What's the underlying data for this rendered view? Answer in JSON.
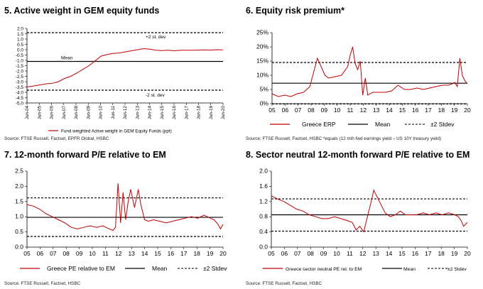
{
  "panels": [
    {
      "title": "5. Active weight in GEM equity funds",
      "source": "Source: FTSE Russell, Factset, EPFR Global, HSBC"
    },
    {
      "title": "6. Equity risk premium*",
      "source": "Source: FTSE Russell, Factset, HSBC *equals (12 mth fwd earnings yield – US 10Y treasury yield)"
    },
    {
      "title": "7. 12-month forward P/E relative to EM",
      "source": "Source: FTSE Russell, Factset, HSBC"
    },
    {
      "title": "8. Sector neutral 12-month forward P/E relative to EM",
      "source": "Source: FTSE Russell, Factset, HSBC"
    }
  ],
  "chart_data": [
    {
      "type": "line",
      "title": "5. Active weight in GEM equity funds",
      "ylim": [
        -5.0,
        2.0
      ],
      "yticks": [
        "2.0",
        "1.5",
        "1.0",
        "0.5",
        "0.0",
        "-0.5",
        "-1.0",
        "-1.5",
        "-2.0",
        "-2.5",
        "-3.0",
        "-3.5",
        "-4.0",
        "-4.5",
        "-5.0"
      ],
      "ytick_values": [
        2.0,
        1.5,
        1.0,
        0.5,
        0.0,
        -0.5,
        -1.0,
        -1.5,
        -2.0,
        -2.5,
        -3.0,
        -3.5,
        -4.0,
        -4.5,
        -5.0
      ],
      "xticks": [
        "Jun-04",
        "Jun-05",
        "Jun-06",
        "Jun-07",
        "Jun-08",
        "Jun-09",
        "Jun-10",
        "Jun-11",
        "Jun-12",
        "Jun-13",
        "Jun-14",
        "Jun-15",
        "Jun-16",
        "Jun-17",
        "Jun-18",
        "Jun-19",
        "Jun-20"
      ],
      "xlim": [
        2004.42,
        2020.5
      ],
      "x": [
        2004.42,
        2005.0,
        2005.5,
        2006.0,
        2006.5,
        2007.0,
        2007.5,
        2008.0,
        2008.5,
        2009.0,
        2009.5,
        2010.0,
        2010.5,
        2011.0,
        2011.5,
        2012.0,
        2012.5,
        2013.0,
        2013.5,
        2014.0,
        2014.5,
        2015.0,
        2015.5,
        2016.0,
        2016.5,
        2017.0,
        2017.5,
        2018.0,
        2018.5,
        2019.0,
        2019.5,
        2020.0,
        2020.5
      ],
      "series": [
        {
          "name": "Fund weighted Active weight in GEM Equity Funds (ppt)",
          "color": "#c00000",
          "values": [
            -3.5,
            -3.4,
            -3.3,
            -3.2,
            -3.15,
            -3.0,
            -2.7,
            -2.5,
            -2.2,
            -1.85,
            -1.5,
            -1.05,
            -0.6,
            -0.45,
            -0.35,
            -0.3,
            -0.2,
            -0.1,
            0.0,
            0.1,
            0.05,
            -0.05,
            -0.08,
            -0.05,
            -0.1,
            -0.05,
            -0.05,
            -0.05,
            -0.03,
            -0.02,
            -0.03,
            0.0,
            -0.02
          ]
        }
      ],
      "reference_lines": [
        {
          "label": "+2 st. dev",
          "value": 1.6,
          "style": "dashed"
        },
        {
          "label": "Mean",
          "value": -1.1,
          "style": "solid"
        },
        {
          "label": "-2 st. dev",
          "value": -3.8,
          "style": "dashed"
        }
      ]
    },
    {
      "type": "line",
      "title": "6. Equity risk premium*",
      "ylim": [
        0,
        25
      ],
      "yticks": [
        "25%",
        "20%",
        "15%",
        "10%",
        "5%",
        "0%"
      ],
      "ytick_values": [
        25,
        20,
        15,
        10,
        5,
        0
      ],
      "xticks": [
        "05",
        "06",
        "07",
        "08",
        "09",
        "10",
        "11",
        "12",
        "13",
        "14",
        "15",
        "16",
        "17",
        "18",
        "19",
        "20"
      ],
      "xlim": [
        2005,
        2020.5
      ],
      "x": [
        2005.0,
        2005.5,
        2006.0,
        2006.5,
        2007.0,
        2007.5,
        2008.0,
        2008.3,
        2008.6,
        2008.9,
        2009.2,
        2009.5,
        2010.0,
        2010.5,
        2011.0,
        2011.2,
        2011.4,
        2011.6,
        2011.8,
        2012.0,
        2012.2,
        2012.4,
        2012.6,
        2013.0,
        2013.5,
        2014.0,
        2014.5,
        2015.0,
        2015.5,
        2016.0,
        2016.5,
        2017.0,
        2017.5,
        2018.0,
        2018.5,
        2019.0,
        2019.3,
        2019.5,
        2019.7,
        2019.9,
        2020.1,
        2020.3,
        2020.5
      ],
      "series": [
        {
          "name": "Greece ERP",
          "color": "#c00000",
          "values": [
            3.5,
            2.5,
            3.0,
            2.5,
            3.5,
            4.0,
            6.0,
            11.0,
            16.0,
            13.0,
            10.0,
            9.0,
            9.5,
            10.0,
            13.0,
            17.0,
            20.0,
            14.0,
            12.0,
            15.0,
            3.0,
            9.0,
            3.0,
            4.0,
            4.0,
            4.0,
            4.5,
            6.5,
            5.0,
            5.0,
            5.5,
            5.0,
            5.5,
            6.0,
            6.5,
            6.5,
            7.0,
            7.5,
            6.0,
            16.0,
            10.0,
            8.0,
            7.0
          ]
        },
        {
          "name": "Mean",
          "color": "#000000"
        },
        {
          "name": "±2 Stdev",
          "color": "#000000"
        }
      ],
      "reference_lines": [
        {
          "label": "Mean",
          "value": 7.2,
          "style": "solid"
        },
        {
          "label": "±2 Stdev",
          "value": 14.5,
          "style": "dashed"
        },
        {
          "label": "±2 Stdev",
          "value": -0.1,
          "style": "dashed"
        }
      ]
    },
    {
      "type": "line",
      "title": "7. 12-month forward P/E relative to EM",
      "ylim": [
        0.0,
        2.5
      ],
      "yticks": [
        "2.5",
        "2.0",
        "1.5",
        "1.0",
        "0.5",
        "0.0"
      ],
      "ytick_values": [
        2.5,
        2.0,
        1.5,
        1.0,
        0.5,
        0.0
      ],
      "xticks": [
        "05",
        "06",
        "07",
        "08",
        "09",
        "10",
        "11",
        "12",
        "13",
        "14",
        "15",
        "16",
        "17",
        "18",
        "19",
        "20"
      ],
      "xlim": [
        2005,
        2020.5
      ],
      "x": [
        2005.0,
        2005.5,
        2006.0,
        2006.5,
        2007.0,
        2007.5,
        2008.0,
        2008.5,
        2009.0,
        2009.5,
        2010.0,
        2010.5,
        2011.0,
        2011.5,
        2011.8,
        2012.0,
        2012.2,
        2012.4,
        2012.6,
        2012.8,
        2013.0,
        2013.2,
        2013.5,
        2013.8,
        2014.0,
        2014.3,
        2014.6,
        2015.0,
        2015.5,
        2016.0,
        2016.5,
        2017.0,
        2017.5,
        2018.0,
        2018.5,
        2019.0,
        2019.5,
        2019.8,
        2020.1,
        2020.3,
        2020.5
      ],
      "series": [
        {
          "name": "Greece PE relative to EM",
          "color": "#c00000",
          "values": [
            1.4,
            1.35,
            1.25,
            1.1,
            1.0,
            0.9,
            0.8,
            0.65,
            0.6,
            0.65,
            0.7,
            0.65,
            0.7,
            0.6,
            0.55,
            0.65,
            2.1,
            0.8,
            1.8,
            0.9,
            1.5,
            1.9,
            1.3,
            1.9,
            1.4,
            0.9,
            0.85,
            0.9,
            0.85,
            0.8,
            0.85,
            0.9,
            0.95,
            1.0,
            0.95,
            1.05,
            0.95,
            0.9,
            0.75,
            0.6,
            0.75
          ]
        },
        {
          "name": "Mean",
          "color": "#000000"
        },
        {
          "name": "±2 Stdev",
          "color": "#000000"
        }
      ],
      "reference_lines": [
        {
          "label": "±2 Stdev",
          "value": 1.62,
          "style": "dashed"
        },
        {
          "label": "Mean",
          "value": 0.98,
          "style": "solid"
        },
        {
          "label": "±2 Stdev",
          "value": 0.35,
          "style": "dashed"
        }
      ]
    },
    {
      "type": "line",
      "title": "8. Sector neutral 12-month forward P/E relative to EM",
      "ylim": [
        0.0,
        2.0
      ],
      "yticks": [
        "2.0",
        "1.6",
        "1.2",
        "0.8",
        "0.4",
        "0.0"
      ],
      "ytick_values": [
        2.0,
        1.6,
        1.2,
        0.8,
        0.4,
        0.0
      ],
      "xticks": [
        "05",
        "06",
        "07",
        "08",
        "09",
        "10",
        "11",
        "12",
        "13",
        "14",
        "15",
        "16",
        "17",
        "18",
        "19",
        "20"
      ],
      "xlim": [
        2005,
        2020.5
      ],
      "x": [
        2005.0,
        2005.3,
        2005.6,
        2006.0,
        2006.5,
        2007.0,
        2007.5,
        2008.0,
        2008.5,
        2009.0,
        2009.5,
        2010.0,
        2010.5,
        2011.0,
        2011.4,
        2011.7,
        2012.0,
        2012.3,
        2012.6,
        2012.9,
        2013.1,
        2013.4,
        2013.7,
        2014.0,
        2014.4,
        2014.8,
        2015.2,
        2015.6,
        2016.0,
        2016.5,
        2017.0,
        2017.5,
        2018.0,
        2018.5,
        2019.0,
        2019.5,
        2019.8,
        2020.0,
        2020.2,
        2020.5
      ],
      "series": [
        {
          "name": "Greece sector neutral PE rel. to EM",
          "color": "#c00000",
          "values": [
            1.35,
            1.3,
            1.25,
            1.2,
            1.1,
            1.0,
            0.95,
            0.85,
            0.8,
            0.75,
            0.75,
            0.8,
            0.75,
            0.7,
            0.65,
            0.45,
            0.55,
            0.4,
            0.8,
            1.2,
            1.5,
            1.3,
            1.1,
            0.9,
            0.8,
            0.85,
            0.95,
            0.85,
            0.85,
            0.85,
            0.9,
            0.85,
            0.9,
            0.85,
            0.9,
            0.85,
            0.8,
            0.7,
            0.55,
            0.65
          ]
        },
        {
          "name": "Mean",
          "color": "#000000"
        },
        {
          "name": "±2 Stdev",
          "color": "#000000"
        }
      ],
      "reference_lines": [
        {
          "label": "±2 Stdev",
          "value": 1.27,
          "style": "dashed"
        },
        {
          "label": "Mean",
          "value": 0.85,
          "style": "solid"
        },
        {
          "label": "±2 Stdev",
          "value": 0.42,
          "style": "dashed"
        }
      ]
    }
  ]
}
